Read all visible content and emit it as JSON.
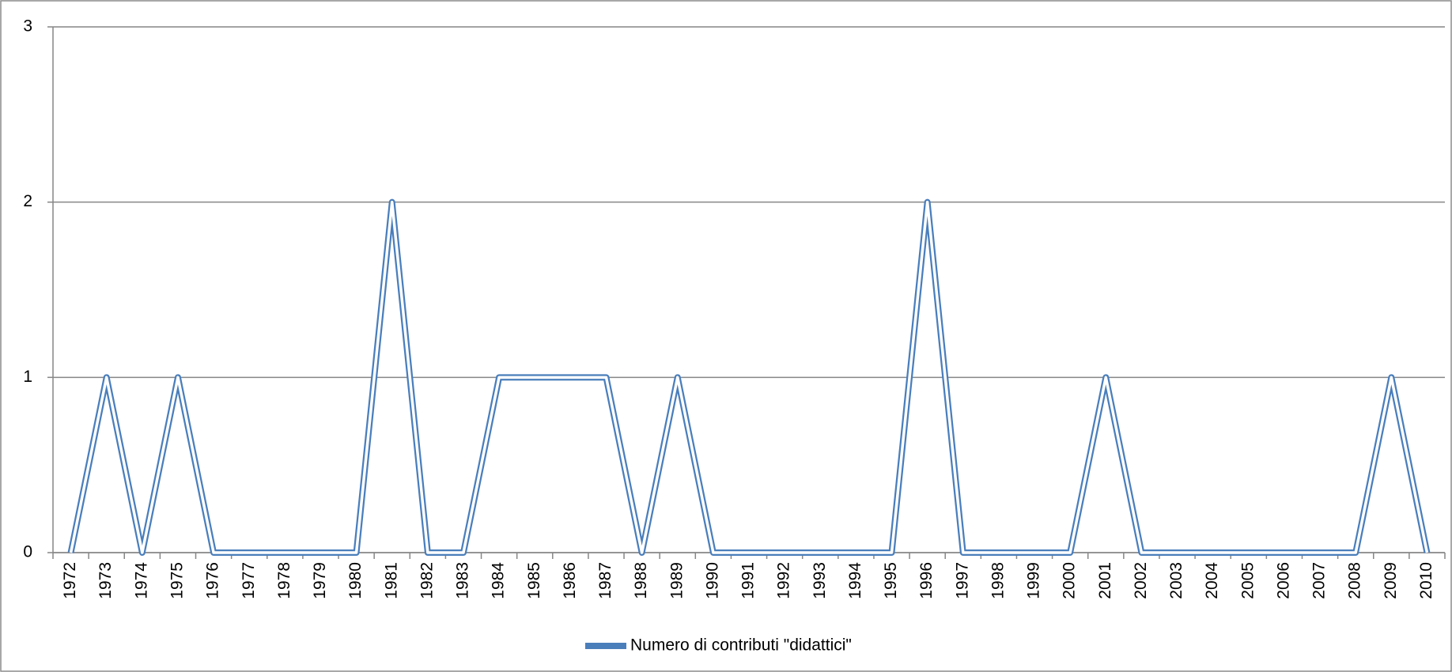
{
  "chart_data": {
    "type": "line",
    "categories": [
      "1972",
      "1973",
      "1974",
      "1975",
      "1976",
      "1977",
      "1978",
      "1979",
      "1980",
      "1981",
      "1982",
      "1983",
      "1984",
      "1985",
      "1986",
      "1987",
      "1988",
      "1989",
      "1990",
      "1991",
      "1992",
      "1993",
      "1994",
      "1995",
      "1996",
      "1997",
      "1998",
      "1999",
      "2000",
      "2001",
      "2002",
      "2003",
      "2004",
      "2005",
      "2006",
      "2007",
      "2008",
      "2009",
      "2010"
    ],
    "series": [
      {
        "name": "Numero di contributi \"didattici\"",
        "color": "#4a7ebb",
        "values": [
          0,
          1,
          0,
          1,
          0,
          0,
          0,
          0,
          0,
          2,
          0,
          0,
          1,
          1,
          1,
          1,
          0,
          1,
          0,
          0,
          0,
          0,
          0,
          0,
          2,
          0,
          0,
          0,
          0,
          1,
          0,
          0,
          0,
          0,
          0,
          0,
          0,
          1,
          0
        ]
      }
    ],
    "ylim": [
      0,
      3
    ],
    "yticks": [
      0,
      1,
      2,
      3
    ],
    "grid": true,
    "legend": "bottom"
  }
}
